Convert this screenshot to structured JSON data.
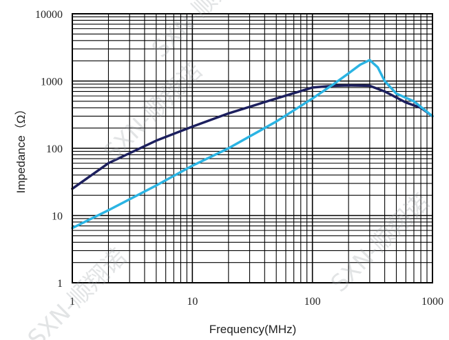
{
  "chart_data": {
    "type": "line",
    "title": "",
    "xlabel": "Frequency(MHz)",
    "ylabel": "Impedance（Ω）",
    "xscale": "log",
    "yscale": "log",
    "xlim": [
      1,
      1000
    ],
    "ylim": [
      1,
      10000
    ],
    "grid": true,
    "x_ticks": [
      "1",
      "10",
      "100",
      "1000"
    ],
    "y_ticks": [
      "1",
      "10",
      "100",
      "1000",
      "10000"
    ],
    "series": [
      {
        "color": "#1c1f5e",
        "x": [
          1,
          2,
          5,
          10,
          20,
          50,
          100,
          150,
          200,
          300,
          400,
          600,
          800,
          1000
        ],
        "values": [
          25,
          60,
          130,
          210,
          330,
          550,
          800,
          850,
          860,
          850,
          700,
          480,
          400,
          300
        ]
      },
      {
        "color": "#2bb4e3",
        "x": [
          1,
          2,
          5,
          10,
          20,
          50,
          100,
          150,
          200,
          250,
          300,
          350,
          400,
          500,
          700,
          1000
        ],
        "values": [
          6.5,
          12,
          28,
          55,
          100,
          250,
          550,
          900,
          1300,
          1750,
          2050,
          1600,
          1000,
          650,
          500,
          300
        ]
      }
    ]
  },
  "watermarks": [
    "SXN-顺翔诺",
    "SXN-顺翔诺",
    "SXN-顺翔诺",
    "SXN-顺翔诺"
  ]
}
